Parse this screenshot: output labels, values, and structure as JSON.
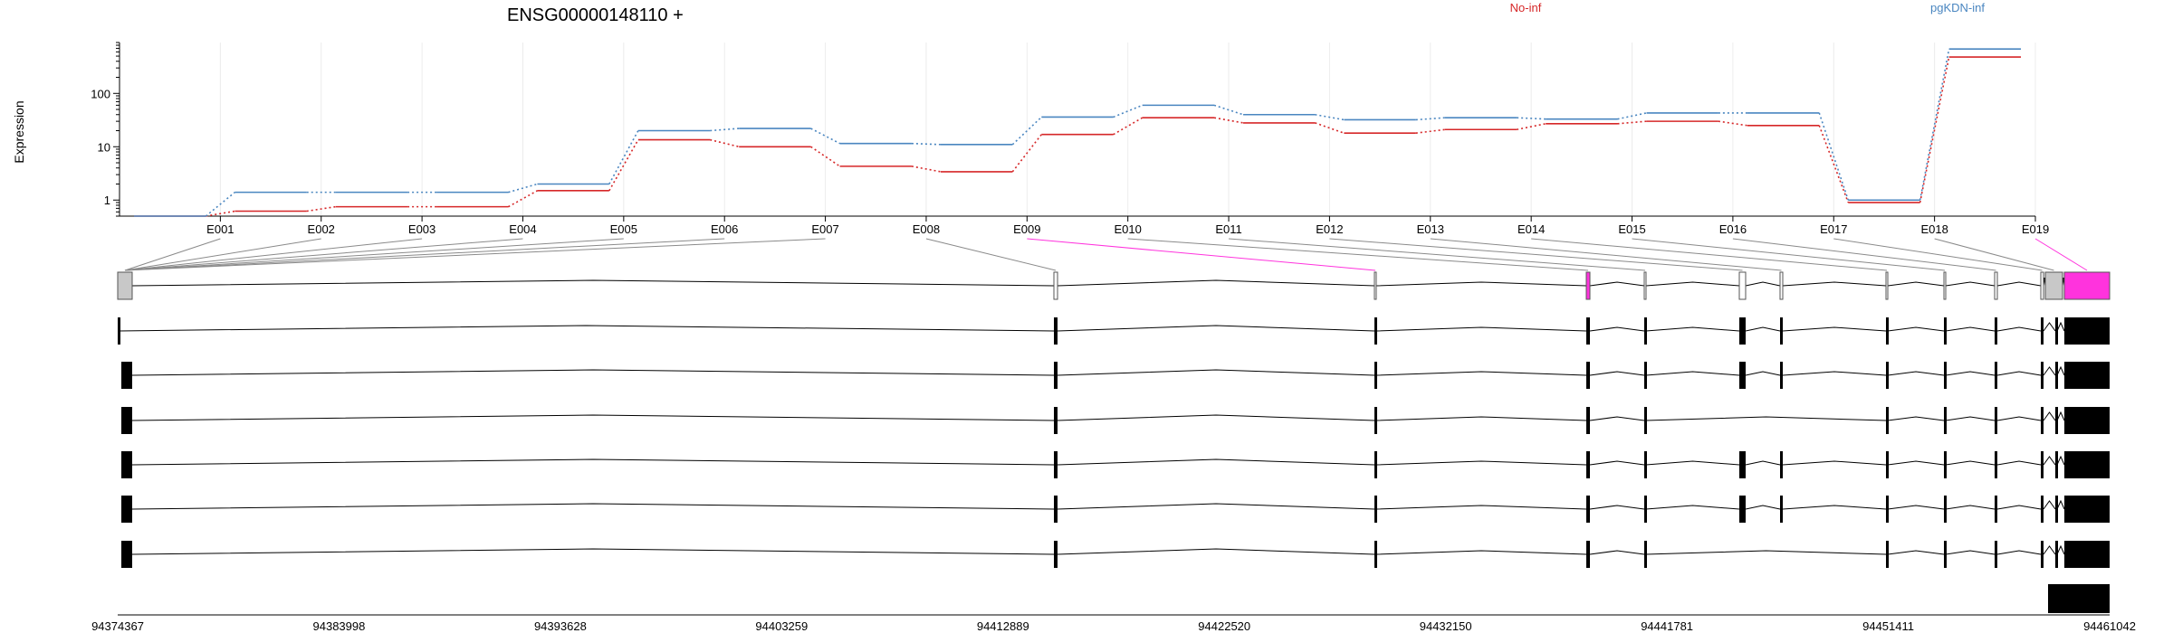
{
  "chart_data": {
    "type": "line",
    "title": "ENSG00000148110 +",
    "ylabel": "Expression",
    "yscale": "log",
    "ylim": [
      0.5,
      900
    ],
    "yticks": [
      1,
      10,
      100
    ],
    "ytick_labels": [
      "1",
      "10",
      "100"
    ],
    "grid": "vertical, light",
    "legend_placement": "top-right",
    "categories": [
      "E001",
      "E002",
      "E003",
      "E004",
      "E005",
      "E006",
      "E007",
      "E008",
      "E009",
      "E010",
      "E011",
      "E012",
      "E013",
      "E014",
      "E015",
      "E016",
      "E017",
      "E018",
      "E019"
    ],
    "series": [
      {
        "name": "No-inf",
        "color": "#d62728",
        "values": [
          0.5,
          0.62,
          0.75,
          0.75,
          1.5,
          13.5,
          10,
          4.3,
          3.4,
          17,
          35,
          28,
          18,
          21,
          27,
          30,
          25,
          0.9,
          480
        ]
      },
      {
        "name": "pgKDN-inf",
        "color": "#4a86c0",
        "values": [
          0.5,
          1.4,
          1.4,
          1.4,
          2.0,
          20,
          22,
          11.5,
          11,
          36,
          60,
          40,
          32,
          35,
          33,
          43,
          43,
          1.0,
          680
        ]
      }
    ]
  },
  "gene_model": {
    "transcript_count": 7,
    "highlight_color": "#ff33dd",
    "highlighted_exons": [
      "E009",
      "E019"
    ],
    "coordinates": [
      "94374367",
      "94383998",
      "94393628",
      "94403259",
      "94412889",
      "94422520",
      "94432150",
      "94441781",
      "94451411",
      "94461042"
    ]
  }
}
